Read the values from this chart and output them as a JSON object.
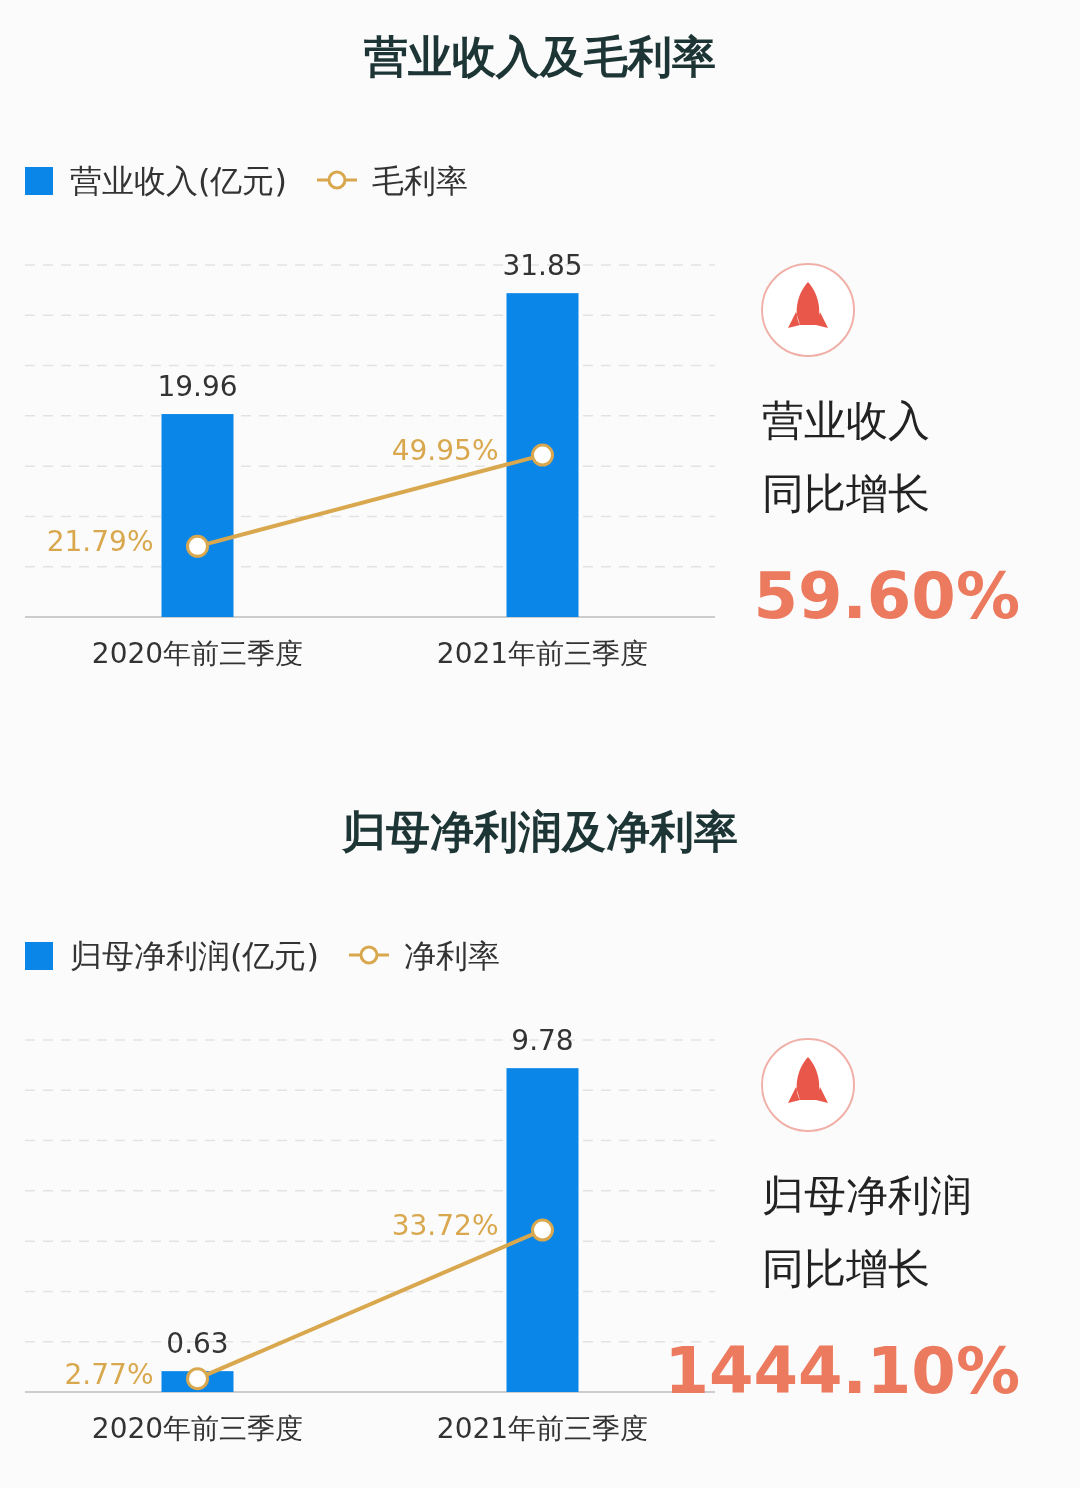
{
  "chart_data": [
    {
      "type": "bar",
      "title": "营业收入及毛利率",
      "categories": [
        "2020年前三季度",
        "2021年前三季度"
      ],
      "legend": "top left",
      "grid": "y",
      "series": [
        {
          "name": "营业收入(亿元)",
          "color": "#0a86e8",
          "values": [
            19.96,
            31.85
          ],
          "value_labels": [
            "19.96",
            "31.85"
          ]
        },
        {
          "name": "毛利率",
          "type": "line",
          "axis": "y2",
          "marker": "circle",
          "color": "#d9a84e",
          "values": [
            21.79,
            49.95
          ],
          "value_labels": [
            "21.79%",
            "49.95%"
          ]
        }
      ],
      "annotations": [
        "营业收入",
        "同比增长",
        "59.60%"
      ]
    },
    {
      "type": "bar",
      "title": "归母净利润及净利率",
      "categories": [
        "2020年前三季度",
        "2021年前三季度"
      ],
      "legend": "top left",
      "grid": "y",
      "series": [
        {
          "name": "归母净利润(亿元)",
          "color": "#0a86e8",
          "values": [
            0.63,
            9.78
          ],
          "value_labels": [
            "0.63",
            "9.78"
          ]
        },
        {
          "name": "净利率",
          "type": "line",
          "axis": "y2",
          "marker": "circle",
          "color": "#d9a84e",
          "values": [
            2.77,
            33.72
          ],
          "value_labels": [
            "2.77%",
            "33.72%"
          ]
        }
      ],
      "annotations": [
        "归母净利润",
        "同比增长",
        "1444.10%"
      ]
    }
  ]
}
